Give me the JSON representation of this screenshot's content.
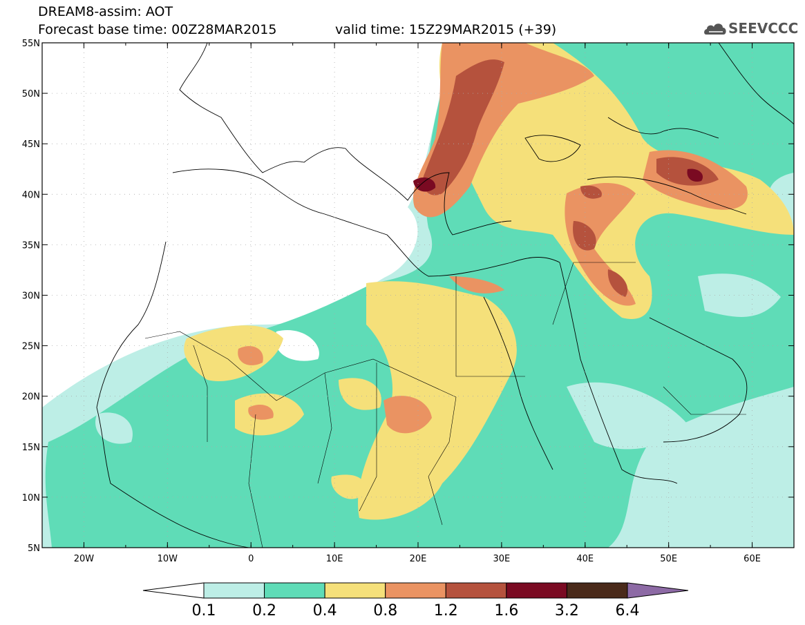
{
  "header": {
    "title": "DREAM8-assim: AOT",
    "base_time": "Forecast base time: 00Z28MAR2015",
    "valid_time": "valid time: 15Z29MAR2015 (+39)"
  },
  "logo": {
    "text": "SEEVCCC",
    "icon": "cloud-icon",
    "color": "#555555"
  },
  "map": {
    "lon_range": [
      -25,
      65
    ],
    "lat_range": [
      5,
      55
    ],
    "lon_ticks": [
      "20W",
      "10W",
      "0",
      "10E",
      "20E",
      "30E",
      "40E",
      "50E",
      "60E"
    ],
    "lat_ticks": [
      "55N",
      "50N",
      "45N",
      "40N",
      "35N",
      "30N",
      "25N",
      "20N",
      "15N",
      "10N",
      "5N"
    ],
    "grid": "dotted"
  },
  "colorbar": {
    "levels": [
      "0.1",
      "0.2",
      "0.4",
      "0.8",
      "1.2",
      "1.6",
      "3.2",
      "6.4"
    ],
    "colors": [
      "#ffffff",
      "#bdeee6",
      "#5fdcb7",
      "#f5e07a",
      "#ea9362",
      "#b5523d",
      "#7a0a22",
      "#4a2a1a",
      "#8d6aa5"
    ]
  }
}
